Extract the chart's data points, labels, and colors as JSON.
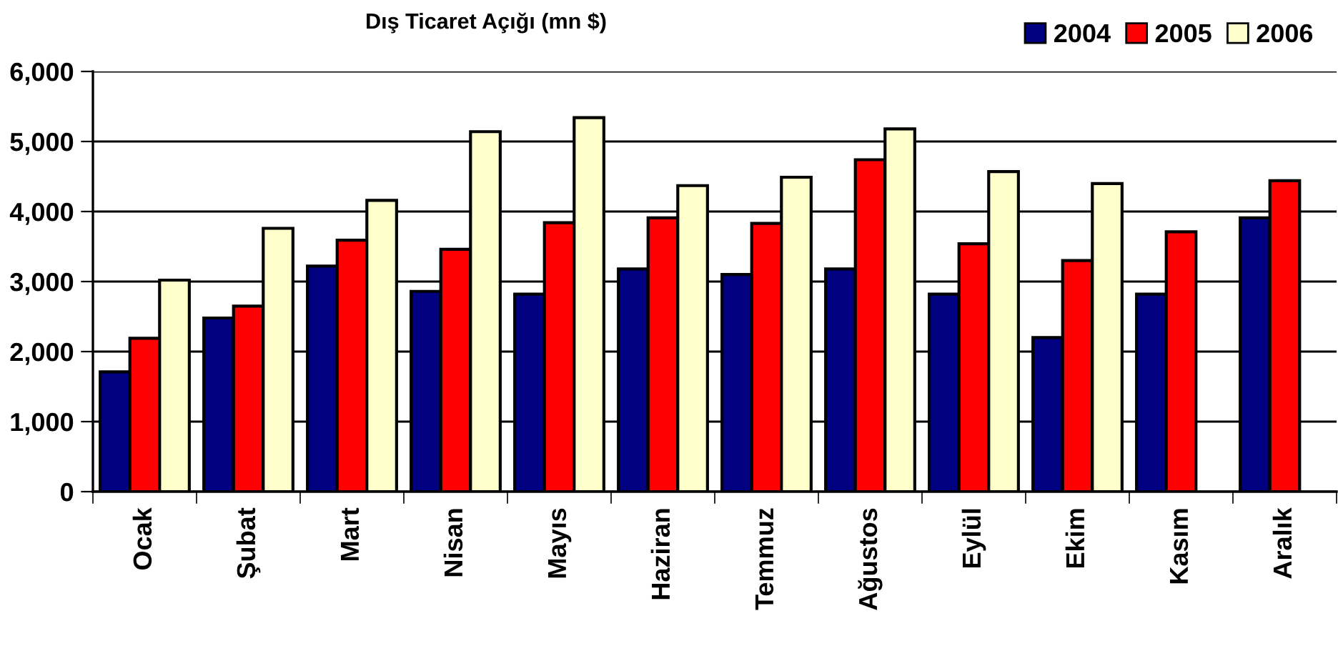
{
  "chart_data": {
    "type": "bar",
    "title": "Dış Ticaret Açığı (mn $)",
    "categories": [
      "Ocak",
      "Şubat",
      "Mart",
      "Nisan",
      "Mayıs",
      "Haziran",
      "Temmuz",
      "Ağustos",
      "Eylül",
      "Ekim",
      "Kasım",
      "Aralık"
    ],
    "series": [
      {
        "name": "2004",
        "color": "#000080",
        "values": [
          1710,
          2480,
          3220,
          2860,
          2820,
          3180,
          3100,
          3180,
          2820,
          2200,
          2820,
          3910
        ]
      },
      {
        "name": "2005",
        "color": "#ff0000",
        "values": [
          2190,
          2650,
          3590,
          3460,
          3840,
          3910,
          3830,
          4740,
          3540,
          3300,
          3710,
          4440
        ]
      },
      {
        "name": "2006",
        "color": "#ffffcc",
        "values": [
          3020,
          3760,
          4160,
          5140,
          5340,
          4370,
          4490,
          5180,
          4570,
          4400,
          null,
          null
        ]
      }
    ],
    "ylim": [
      0,
      6000
    ],
    "yticks": [
      {
        "value": 0,
        "label": "0"
      },
      {
        "value": 1000,
        "label": "1,000"
      },
      {
        "value": 2000,
        "label": "2,000"
      },
      {
        "value": 3000,
        "label": "3,000"
      },
      {
        "value": 4000,
        "label": "4,000"
      },
      {
        "value": 5000,
        "label": "5,000"
      },
      {
        "value": 6000,
        "label": "6,000"
      }
    ],
    "grid": "y",
    "legend": "top right"
  }
}
